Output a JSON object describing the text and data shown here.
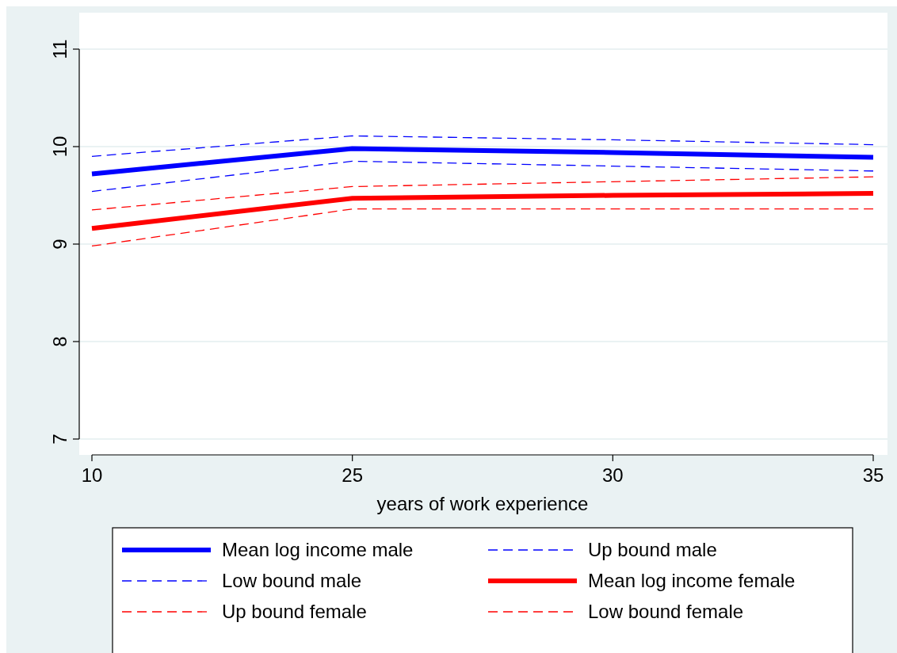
{
  "chart_data": {
    "type": "line",
    "xlabel": "years of work experience",
    "categories": [
      "10",
      "25",
      "30",
      "35"
    ],
    "ylim": [
      7,
      11
    ],
    "yticks": [
      7,
      8,
      9,
      10,
      11
    ],
    "grid": "y",
    "legend": "bottom",
    "marker": "none",
    "series": [
      {
        "name": "Mean log income male",
        "color": "#0000ff",
        "line_style": "solid",
        "values": [
          9.72,
          9.98,
          9.94,
          9.89
        ]
      },
      {
        "name": "Up bound male",
        "color": "#0000ff",
        "line_style": "dashed",
        "values": [
          9.9,
          10.11,
          10.07,
          10.02
        ]
      },
      {
        "name": "Low bound male",
        "color": "#0000ff",
        "line_style": "dashed",
        "values": [
          9.54,
          9.85,
          9.8,
          9.75
        ]
      },
      {
        "name": "Mean log income female",
        "color": "#ff0000",
        "line_style": "solid",
        "values": [
          9.16,
          9.47,
          9.5,
          9.52
        ]
      },
      {
        "name": "Up bound female",
        "color": "#ff0000",
        "line_style": "dashed",
        "values": [
          9.35,
          9.59,
          9.64,
          9.69
        ]
      },
      {
        "name": "Low bound female",
        "color": "#ff0000",
        "line_style": "dashed",
        "values": [
          8.98,
          9.36,
          9.36,
          9.36
        ]
      }
    ]
  }
}
